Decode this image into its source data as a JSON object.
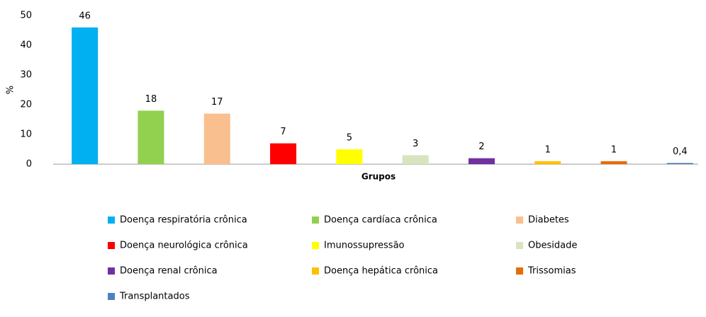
{
  "chart_data": {
    "type": "bar",
    "y_label": "%",
    "x_label": "Grupos",
    "series": [
      {
        "name": "Doença respiratória crônica",
        "color": "#00b0f0",
        "values": [
          46
        ]
      },
      {
        "name": "Doença cardíaca crônica",
        "color": "#92d050",
        "values": [
          18
        ]
      },
      {
        "name": "Diabetes",
        "color": "#fabf8f",
        "values": [
          17
        ]
      },
      {
        "name": "Doença neurológica crônica",
        "color": "#ff0000",
        "values": [
          7
        ]
      },
      {
        "name": "Imunossupressão",
        "color": "#ffff00",
        "values": [
          5
        ]
      },
      {
        "name": "Obesidade",
        "color": "#d7e4bd",
        "values": [
          3
        ]
      },
      {
        "name": "Doença renal crônica",
        "color": "#7030a0",
        "values": [
          2
        ]
      },
      {
        "name": "Doença hepática crônica",
        "color": "#ffc000",
        "values": [
          1
        ]
      },
      {
        "name": "Trissomias",
        "color": "#e46c0a",
        "values": [
          1
        ]
      },
      {
        "name": "Transplantados",
        "color": "#4f81bd",
        "values": [
          0.4
        ],
        "value_labels": [
          "0,4"
        ]
      }
    ],
    "ylim": [
      0,
      50
    ],
    "yticks": [
      0,
      10,
      20,
      30,
      40,
      50
    ],
    "grid": false,
    "legend": "bottom"
  }
}
